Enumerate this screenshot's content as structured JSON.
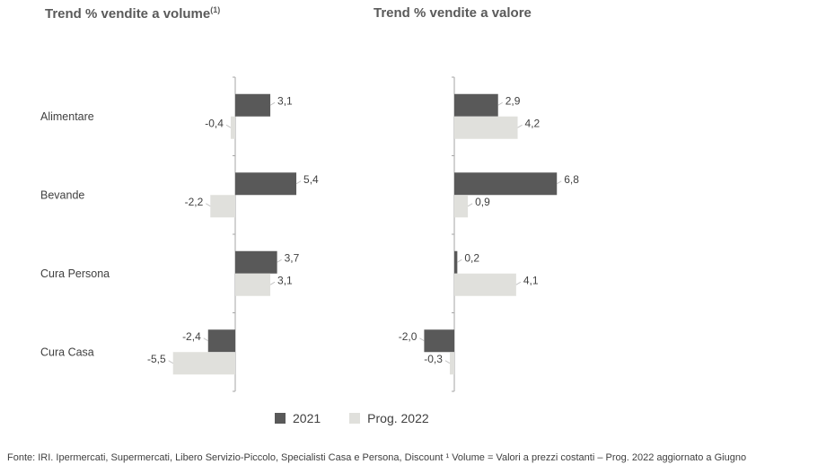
{
  "colors": {
    "series_2021": "#595959",
    "series_2022": "#e0e0dc",
    "axis": "#a6a6a6",
    "text": "#404040"
  },
  "chart_data": [
    {
      "type": "bar",
      "orientation": "horizontal",
      "title": "Trend % vendite a volume",
      "title_sup": "(1)",
      "categories": [
        "Alimentare",
        "Bevande",
        "Cura Persona",
        "Cura Casa"
      ],
      "series": [
        {
          "name": "2021",
          "values": [
            3.1,
            5.4,
            3.7,
            -2.4
          ],
          "labels": [
            "3,1",
            "5,4",
            "3,7",
            "-2,4"
          ]
        },
        {
          "name": "Prog. 2022",
          "values": [
            -0.4,
            -2.2,
            3.1,
            -5.5
          ],
          "labels": [
            "-0,4",
            "-2,2",
            "3,1",
            "-5,5"
          ]
        }
      ]
    },
    {
      "type": "bar",
      "orientation": "horizontal",
      "title": "Trend % vendite a valore",
      "categories": [
        "Alimentare",
        "Bevande",
        "Cura Persona",
        "Cura Casa"
      ],
      "series": [
        {
          "name": "2021",
          "values": [
            2.9,
            6.8,
            0.2,
            -2.0
          ],
          "labels": [
            "2,9",
            "6,8",
            "0,2",
            "-2,0"
          ]
        },
        {
          "name": "Prog. 2022",
          "values": [
            4.2,
            0.9,
            4.1,
            -0.3
          ],
          "labels": [
            "4,2",
            "0,9",
            "4,1",
            "-0,3"
          ]
        }
      ]
    }
  ],
  "legend": {
    "item1": "2021",
    "item2": "Prog. 2022"
  },
  "footer": "Fonte: IRI. Ipermercati, Supermercati, Libero Servizio-Piccolo, Specialisti Casa e Persona, Discount ¹ Volume = Valori a prezzi costanti – Prog. 2022 aggiornato a Giugno"
}
